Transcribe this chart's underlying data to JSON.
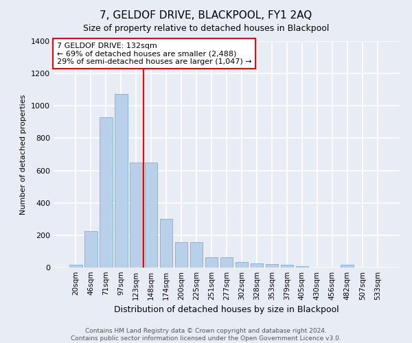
{
  "title": "7, GELDOF DRIVE, BLACKPOOL, FY1 2AQ",
  "subtitle": "Size of property relative to detached houses in Blackpool",
  "xlabel": "Distribution of detached houses by size in Blackpool",
  "ylabel": "Number of detached properties",
  "footer_line1": "Contains HM Land Registry data © Crown copyright and database right 2024.",
  "footer_line2": "Contains public sector information licensed under the Open Government Licence v3.0.",
  "annotation_line1": "7 GELDOF DRIVE: 132sqm",
  "annotation_line2": "← 69% of detached houses are smaller (2,488)",
  "annotation_line3": "29% of semi-detached houses are larger (1,047) →",
  "bar_labels": [
    "20sqm",
    "46sqm",
    "71sqm",
    "97sqm",
    "123sqm",
    "148sqm",
    "174sqm",
    "200sqm",
    "225sqm",
    "251sqm",
    "277sqm",
    "302sqm",
    "328sqm",
    "353sqm",
    "379sqm",
    "405sqm",
    "430sqm",
    "456sqm",
    "482sqm",
    "507sqm",
    "533sqm"
  ],
  "bar_values": [
    15,
    225,
    930,
    1075,
    650,
    650,
    300,
    155,
    155,
    65,
    65,
    35,
    25,
    20,
    15,
    10,
    0,
    0,
    15,
    0,
    0
  ],
  "bar_color": "#b8d0ea",
  "bar_edge_color": "#7aafd4",
  "vline_x": 4.5,
  "vline_color": "red",
  "ylim": [
    0,
    1400
  ],
  "yticks": [
    0,
    200,
    400,
    600,
    800,
    1000,
    1200,
    1400
  ],
  "bg_color": "#e8ecf5",
  "plot_bg_color": "#e8ecf5",
  "grid_color": "white",
  "title_fontsize": 11,
  "subtitle_fontsize": 9,
  "ylabel_fontsize": 8,
  "xlabel_fontsize": 9,
  "tick_fontsize": 8,
  "xtick_fontsize": 7.5,
  "annotation_fontsize": 8,
  "footer_fontsize": 6.5
}
